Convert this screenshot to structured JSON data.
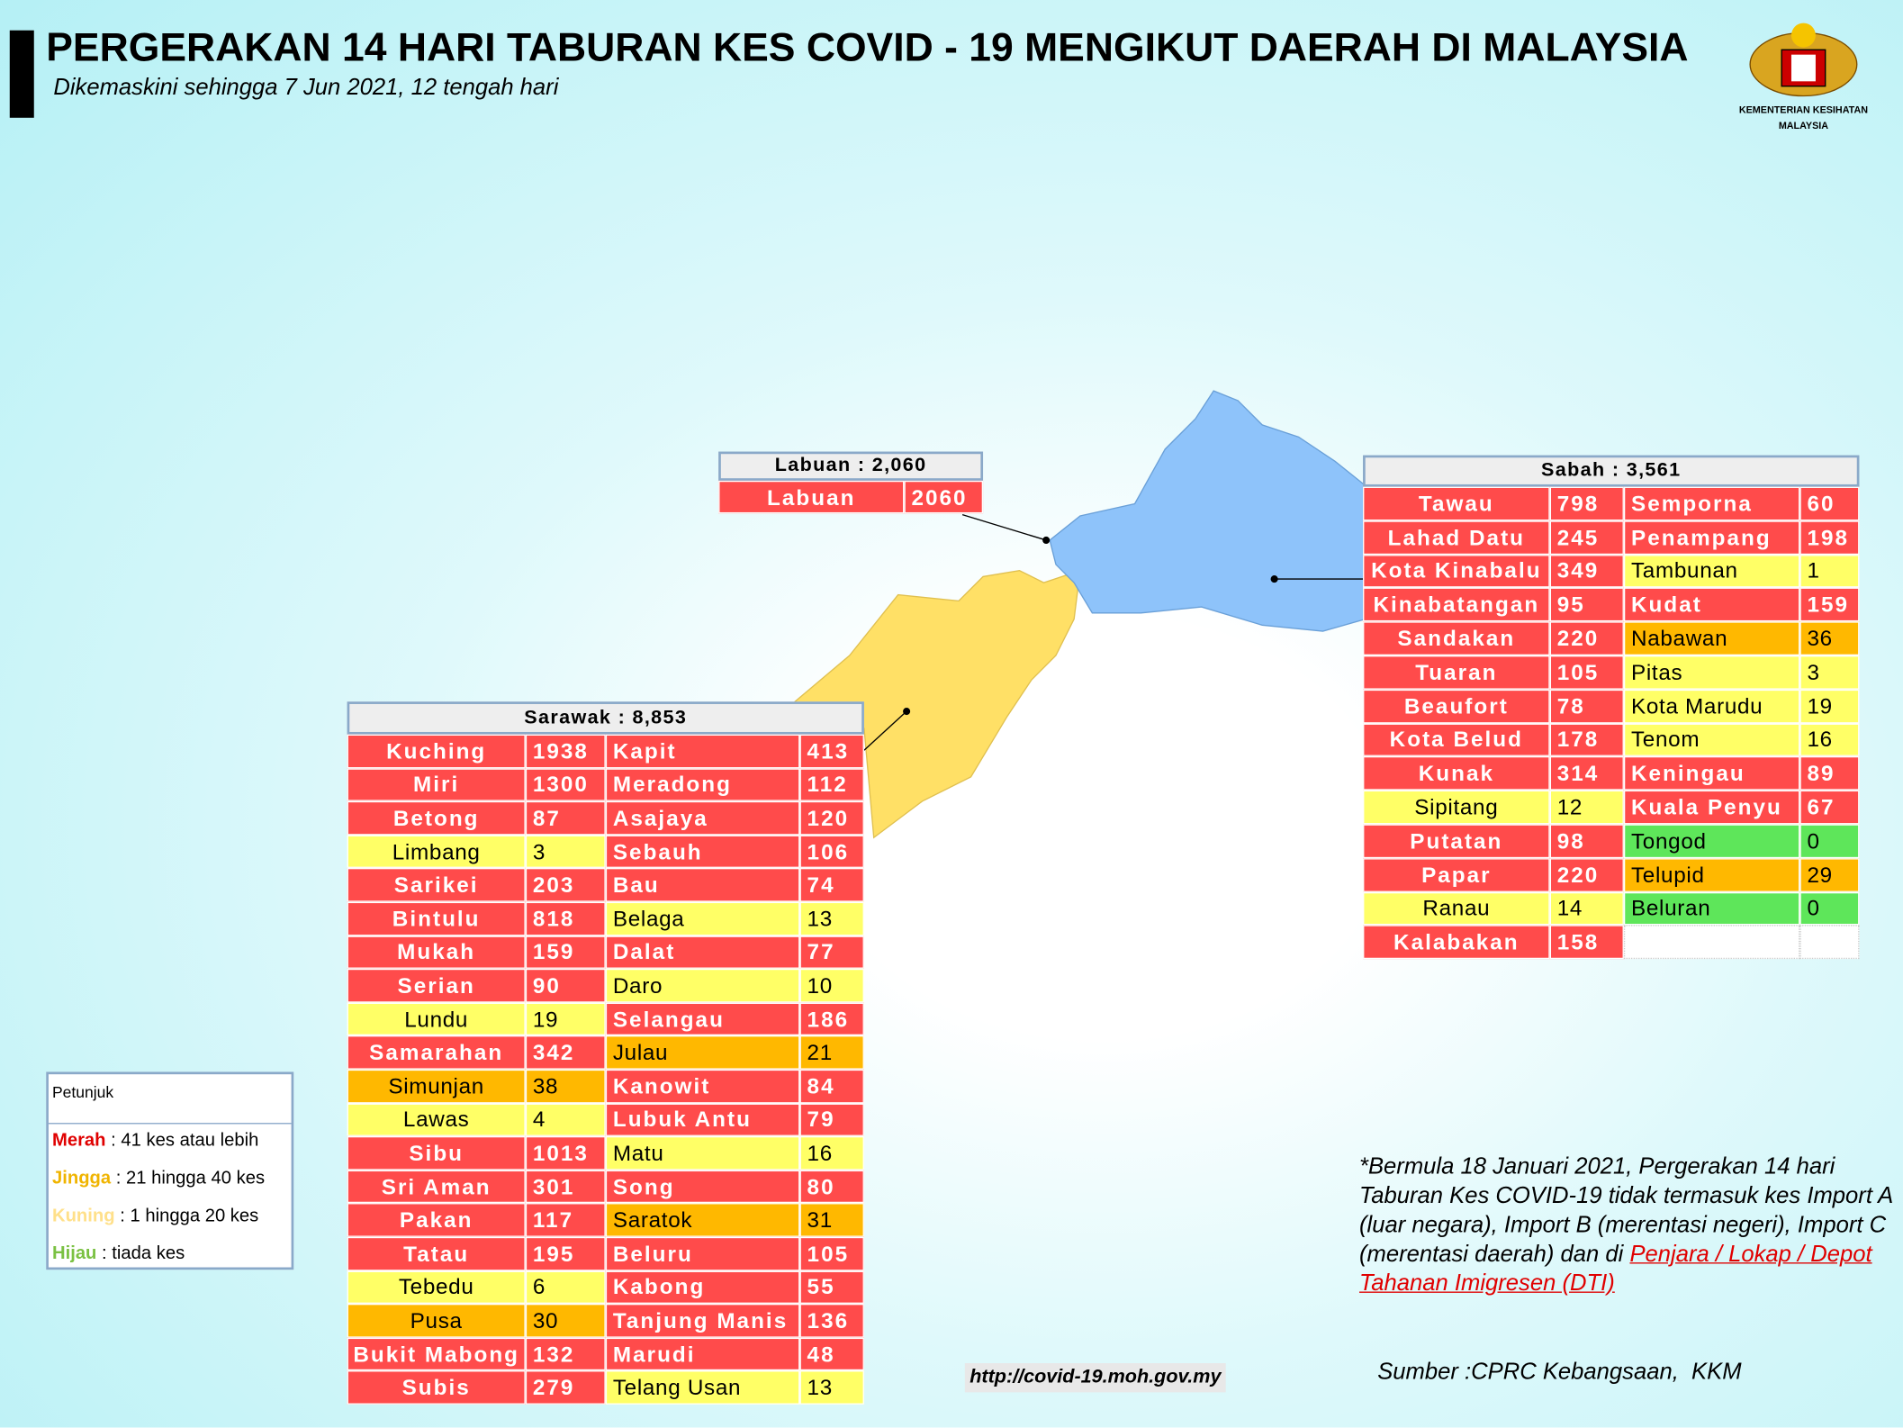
{
  "header": {
    "title": "PERGERAKAN 14 HARI TABURAN KES COVID - 19 MENGIKUT DAERAH DI MALAYSIA",
    "subtitle": "Dikemaskini sehingga 7 Jun 2021, 12 tengah hari",
    "logo_text": [
      "KEMENTERIAN KESIHATAN",
      "MALAYSIA"
    ]
  },
  "labuan": {
    "title": "Labuan : 2,060",
    "rows": [
      [
        {
          "name": "Labuan",
          "cases": 2060,
          "color": "#ff4b4b"
        }
      ]
    ]
  },
  "sabah": {
    "title": "Sabah : 3,561",
    "rows": [
      [
        {
          "name": "Tawau",
          "cases": 798,
          "color": "#ff4b4b"
        },
        {
          "name": "Semporna",
          "cases": 60,
          "color": "#ff4b4b"
        }
      ],
      [
        {
          "name": "Lahad Datu",
          "cases": 245,
          "color": "#ff4b4b"
        },
        {
          "name": "Penampang",
          "cases": 198,
          "color": "#ff4b4b"
        }
      ],
      [
        {
          "name": "Kota Kinabalu",
          "cases": 349,
          "color": "#ff4b4b"
        },
        {
          "name": "Tambunan",
          "cases": 1,
          "color": "#ffff66"
        }
      ],
      [
        {
          "name": "Kinabatangan",
          "cases": 95,
          "color": "#ff4b4b"
        },
        {
          "name": "Kudat",
          "cases": 159,
          "color": "#ff4b4b"
        }
      ],
      [
        {
          "name": "Sandakan",
          "cases": 220,
          "color": "#ff4b4b"
        },
        {
          "name": "Nabawan",
          "cases": 36,
          "color": "#ffb800"
        }
      ],
      [
        {
          "name": "Tuaran",
          "cases": 105,
          "color": "#ff4b4b"
        },
        {
          "name": "Pitas",
          "cases": 3,
          "color": "#ffff66"
        }
      ],
      [
        {
          "name": "Beaufort",
          "cases": 78,
          "color": "#ff4b4b"
        },
        {
          "name": "Kota Marudu",
          "cases": 19,
          "color": "#ffff66"
        }
      ],
      [
        {
          "name": "Kota Belud",
          "cases": 178,
          "color": "#ff4b4b"
        },
        {
          "name": "Tenom",
          "cases": 16,
          "color": "#ffff66"
        }
      ],
      [
        {
          "name": "Kunak",
          "cases": 314,
          "color": "#ff4b4b"
        },
        {
          "name": "Keningau",
          "cases": 89,
          "color": "#ff4b4b"
        }
      ],
      [
        {
          "name": "Sipitang",
          "cases": 12,
          "color": "#ffff66"
        },
        {
          "name": "Kuala Penyu",
          "cases": 67,
          "color": "#ff4b4b"
        }
      ],
      [
        {
          "name": "Putatan",
          "cases": 98,
          "color": "#ff4b4b"
        },
        {
          "name": "Tongod",
          "cases": 0,
          "color": "#5ee65a"
        }
      ],
      [
        {
          "name": "Papar",
          "cases": 220,
          "color": "#ff4b4b"
        },
        {
          "name": "Telupid",
          "cases": 29,
          "color": "#ffb800"
        }
      ],
      [
        {
          "name": "Ranau",
          "cases": 14,
          "color": "#ffff66"
        },
        {
          "name": "Beluran",
          "cases": 0,
          "color": "#5ee65a"
        }
      ],
      [
        {
          "name": "Kalabakan",
          "cases": 158,
          "color": "#ff4b4b"
        }
      ]
    ]
  },
  "sarawak": {
    "title": "Sarawak : 8,853",
    "rows": [
      [
        {
          "name": "Kuching",
          "cases": 1938,
          "color": "#ff4b4b"
        },
        {
          "name": "Kapit",
          "cases": 413,
          "color": "#ff4b4b"
        }
      ],
      [
        {
          "name": "Miri",
          "cases": 1300,
          "color": "#ff4b4b"
        },
        {
          "name": "Meradong",
          "cases": 112,
          "color": "#ff4b4b"
        }
      ],
      [
        {
          "name": "Betong",
          "cases": 87,
          "color": "#ff4b4b"
        },
        {
          "name": "Asajaya",
          "cases": 120,
          "color": "#ff4b4b"
        }
      ],
      [
        {
          "name": "Limbang",
          "cases": 3,
          "color": "#ffff66"
        },
        {
          "name": "Sebauh",
          "cases": 106,
          "color": "#ff4b4b"
        }
      ],
      [
        {
          "name": "Sarikei",
          "cases": 203,
          "color": "#ff4b4b"
        },
        {
          "name": "Bau",
          "cases": 74,
          "color": "#ff4b4b"
        }
      ],
      [
        {
          "name": "Bintulu",
          "cases": 818,
          "color": "#ff4b4b"
        },
        {
          "name": "Belaga",
          "cases": 13,
          "color": "#ffff66"
        }
      ],
      [
        {
          "name": "Mukah",
          "cases": 159,
          "color": "#ff4b4b"
        },
        {
          "name": "Dalat",
          "cases": 77,
          "color": "#ff4b4b"
        }
      ],
      [
        {
          "name": "Serian",
          "cases": 90,
          "color": "#ff4b4b"
        },
        {
          "name": "Daro",
          "cases": 10,
          "color": "#ffff66"
        }
      ],
      [
        {
          "name": "Lundu",
          "cases": 19,
          "color": "#ffff66"
        },
        {
          "name": "Selangau",
          "cases": 186,
          "color": "#ff4b4b"
        }
      ],
      [
        {
          "name": "Samarahan",
          "cases": 342,
          "color": "#ff4b4b"
        },
        {
          "name": "Julau",
          "cases": 21,
          "color": "#ffb800"
        }
      ],
      [
        {
          "name": "Simunjan",
          "cases": 38,
          "color": "#ffb800"
        },
        {
          "name": "Kanowit",
          "cases": 84,
          "color": "#ff4b4b"
        }
      ],
      [
        {
          "name": "Lawas",
          "cases": 4,
          "color": "#ffff66"
        },
        {
          "name": "Lubuk Antu",
          "cases": 79,
          "color": "#ff4b4b"
        }
      ],
      [
        {
          "name": "Sibu",
          "cases": 1013,
          "color": "#ff4b4b"
        },
        {
          "name": "Matu",
          "cases": 16,
          "color": "#ffff66"
        }
      ],
      [
        {
          "name": "Sri Aman",
          "cases": 301,
          "color": "#ff4b4b"
        },
        {
          "name": "Song",
          "cases": 80,
          "color": "#ff4b4b"
        }
      ],
      [
        {
          "name": "Pakan",
          "cases": 117,
          "color": "#ff4b4b"
        },
        {
          "name": "Saratok",
          "cases": 31,
          "color": "#ffb800"
        }
      ],
      [
        {
          "name": "Tatau",
          "cases": 195,
          "color": "#ff4b4b"
        },
        {
          "name": "Beluru",
          "cases": 105,
          "color": "#ff4b4b"
        }
      ],
      [
        {
          "name": "Tebedu",
          "cases": 6,
          "color": "#ffff66"
        },
        {
          "name": "Kabong",
          "cases": 55,
          "color": "#ff4b4b"
        }
      ],
      [
        {
          "name": "Pusa",
          "cases": 30,
          "color": "#ffb800"
        },
        {
          "name": "Tanjung Manis",
          "cases": 136,
          "color": "#ff4b4b"
        }
      ],
      [
        {
          "name": "Bukit Mabong",
          "cases": 132,
          "color": "#ff4b4b"
        },
        {
          "name": "Marudi",
          "cases": 48,
          "color": "#ff4b4b"
        }
      ],
      [
        {
          "name": "Subis",
          "cases": 279,
          "color": "#ff4b4b"
        },
        {
          "name": "Telang Usan",
          "cases": 13,
          "color": "#ffff66"
        }
      ]
    ]
  },
  "legend": {
    "title": "Petunjuk",
    "items": [
      {
        "label": "Merah",
        "text": ": 41 kes atau lebih",
        "color": "#e00000"
      },
      {
        "label": "Jingga",
        "text": ": 21 hingga 40 kes",
        "color": "#f0b400"
      },
      {
        "label": "Kuning",
        "text": ": 1 hingga 20 kes",
        "color": "#ffe08a"
      },
      {
        "label": "Hijau",
        "text": ": tiada kes",
        "color": "#7ac142"
      }
    ]
  },
  "note": {
    "text": "*Bermula 18 Januari 2021, Pergerakan 14 hari Taburan Kes COVID-19 tidak termasuk kes Import A (luar negara), Import B (merentasi negeri), Import C (merentasi daerah) dan di",
    "link": "Penjara / Lokap / Depot Tahanan Imigresen (DTI)"
  },
  "url": "http://covid-19.moh.gov.my",
  "source": "Sumber :CPRC Kebangsaan,  KKM"
}
